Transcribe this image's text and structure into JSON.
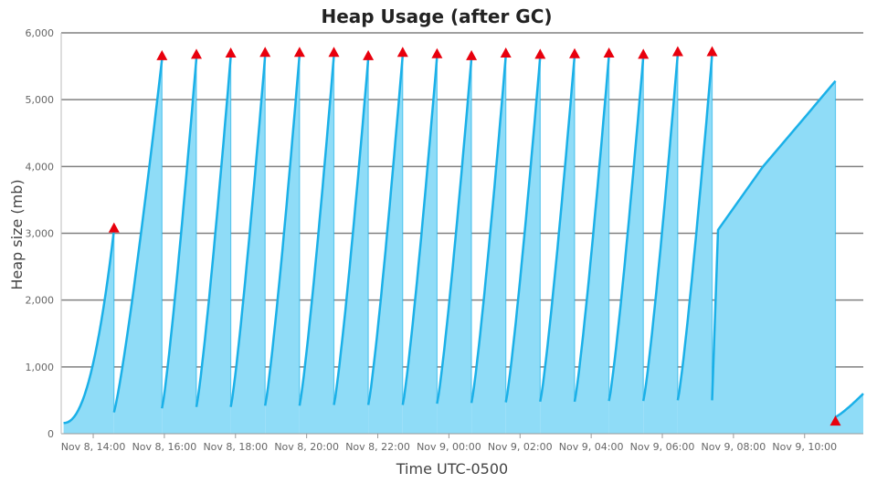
{
  "chart_data": {
    "type": "area",
    "title": "Heap Usage (after GC)",
    "xlabel": "Time UTC-0500",
    "ylabel": "Heap size (mb)",
    "xlim_hours": [
      13.1,
      11.65
    ],
    "x_start_day_hour": [
      "Nov 8",
      13.1
    ],
    "x_end_day_hour": [
      "Nov 9",
      10.9
    ],
    "ylim": [
      0,
      6000
    ],
    "y_ticks": [
      0,
      1000,
      2000,
      3000,
      4000,
      5000,
      6000
    ],
    "y_tick_labels": [
      "0",
      "1,000",
      "2,000",
      "3,000",
      "4,000",
      "5,000",
      "6,000"
    ],
    "x_ticks": [
      "Nov 8, 14:00",
      "Nov 8, 16:00",
      "Nov 8, 18:00",
      "Nov 8, 20:00",
      "Nov 8, 22:00",
      "Nov 9, 00:00",
      "Nov 9, 02:00",
      "Nov 9, 04:00",
      "Nov 9, 06:00",
      "Nov 9, 08:00",
      "Nov 9, 10:00"
    ],
    "grid": true,
    "colors": {
      "area": "#8fdcf7",
      "line": "#1ab0e8",
      "marker": "#e8000d",
      "grid": "#808080"
    },
    "series": [
      {
        "cycles": [
          {
            "start": "Nov 8, 13:10",
            "end": "Nov 8, 14:35",
            "from": 160,
            "to": 3050
          },
          {
            "start": "Nov 8, 14:35",
            "end": "Nov 8, 15:56",
            "from": 320,
            "to": 5600
          },
          {
            "start": "Nov 8, 15:56",
            "end": "Nov 8, 16:54",
            "from": 380,
            "to": 5620
          },
          {
            "start": "Nov 8, 16:54",
            "end": "Nov 8, 17:52",
            "from": 400,
            "to": 5650
          },
          {
            "start": "Nov 8, 17:52",
            "end": "Nov 8, 18:50",
            "from": 400,
            "to": 5660
          },
          {
            "start": "Nov 8, 18:50",
            "end": "Nov 8, 19:48",
            "from": 420,
            "to": 5670
          },
          {
            "start": "Nov 8, 19:48",
            "end": "Nov 8, 20:46",
            "from": 420,
            "to": 5660
          },
          {
            "start": "Nov 8, 20:46",
            "end": "Nov 8, 21:44",
            "from": 430,
            "to": 5620
          },
          {
            "start": "Nov 8, 21:44",
            "end": "Nov 8, 22:42",
            "from": 430,
            "to": 5660
          },
          {
            "start": "Nov 8, 22:42",
            "end": "Nov 8, 23:40",
            "from": 430,
            "to": 5650
          },
          {
            "start": "Nov 8, 23:40",
            "end": "Nov 9, 00:38",
            "from": 450,
            "to": 5620
          },
          {
            "start": "Nov 9, 00:38",
            "end": "Nov 9, 01:36",
            "from": 460,
            "to": 5660
          },
          {
            "start": "Nov 9, 01:36",
            "end": "Nov 9, 02:34",
            "from": 470,
            "to": 5650
          },
          {
            "start": "Nov 9, 02:34",
            "end": "Nov 9, 03:32",
            "from": 480,
            "to": 5660
          },
          {
            "start": "Nov 9, 03:32",
            "end": "Nov 9, 04:30",
            "from": 480,
            "to": 5660
          },
          {
            "start": "Nov 9, 04:30",
            "end": "Nov 9, 05:28",
            "from": 490,
            "to": 5650
          },
          {
            "start": "Nov 9, 05:28",
            "end": "Nov 9, 06:26",
            "from": 490,
            "to": 5680
          },
          {
            "start": "Nov 9, 06:26",
            "end": "Nov 9, 07:24",
            "from": 500,
            "to": 5680
          },
          {
            "start": "Nov 9, 07:24",
            "end": "Nov 9, 10:52",
            "from": 500,
            "to": 5280,
            "knots": [
              [
                "Nov 9, 07:34",
                3050
              ],
              [
                "Nov 9, 08:50",
                4000
              ],
              [
                "Nov 9, 09:57",
                4700
              ]
            ]
          },
          {
            "start": "Nov 9, 10:52",
            "end": "Nov 9, 11:39",
            "from": 250,
            "to": 600
          }
        ]
      }
    ],
    "markers": [
      {
        "x": "Nov 8, 14:35",
        "y": 3080
      },
      {
        "x": "Nov 8, 15:56",
        "y": 5660
      },
      {
        "x": "Nov 8, 16:54",
        "y": 5680
      },
      {
        "x": "Nov 8, 17:52",
        "y": 5700
      },
      {
        "x": "Nov 8, 18:50",
        "y": 5710
      },
      {
        "x": "Nov 8, 19:48",
        "y": 5710
      },
      {
        "x": "Nov 8, 20:46",
        "y": 5710
      },
      {
        "x": "Nov 8, 21:44",
        "y": 5660
      },
      {
        "x": "Nov 8, 22:42",
        "y": 5710
      },
      {
        "x": "Nov 8, 23:40",
        "y": 5690
      },
      {
        "x": "Nov 9, 00:38",
        "y": 5660
      },
      {
        "x": "Nov 9, 01:36",
        "y": 5700
      },
      {
        "x": "Nov 9, 02:34",
        "y": 5680
      },
      {
        "x": "Nov 9, 03:32",
        "y": 5690
      },
      {
        "x": "Nov 9, 04:30",
        "y": 5700
      },
      {
        "x": "Nov 9, 05:28",
        "y": 5680
      },
      {
        "x": "Nov 9, 06:26",
        "y": 5720
      },
      {
        "x": "Nov 9, 07:24",
        "y": 5720
      },
      {
        "x": "Nov 9, 10:52",
        "y": 190
      }
    ]
  }
}
